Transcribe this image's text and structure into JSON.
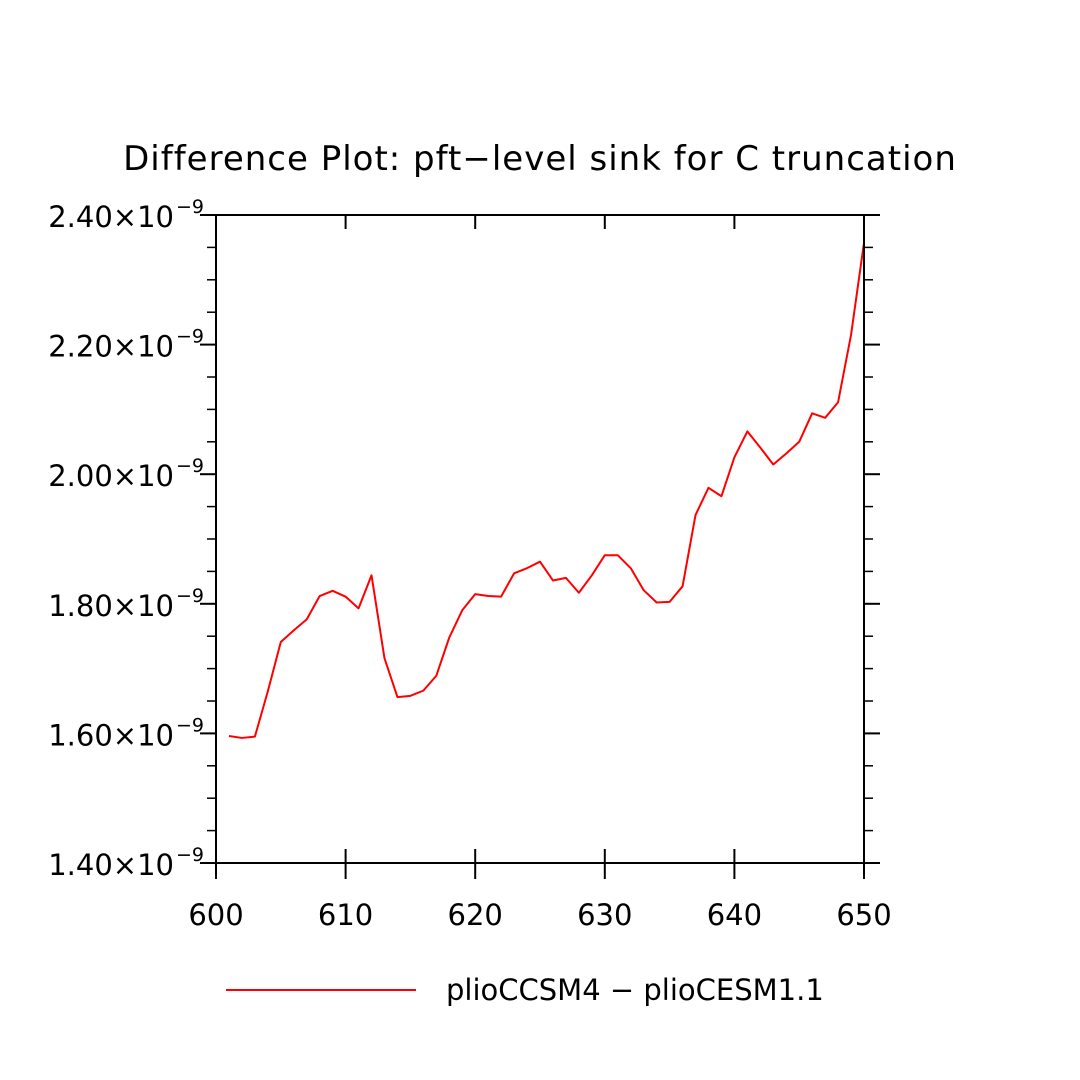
{
  "chart_data": {
    "type": "line",
    "title": "Difference Plot: pft−level sink for C truncation",
    "xlabel": "",
    "ylabel": "",
    "xlim": [
      600,
      650
    ],
    "ylim": [
      1.4e-09,
      2.4e-09
    ],
    "x_ticks": [
      600,
      610,
      620,
      630,
      640,
      650
    ],
    "x_tick_labels": [
      "600",
      "610",
      "620",
      "630",
      "640",
      "650"
    ],
    "y_ticks": [
      1.4e-09,
      1.6e-09,
      1.8e-09,
      2e-09,
      2.2e-09,
      2.4e-09
    ],
    "y_tick_mantissas": [
      "1.40",
      "1.60",
      "1.80",
      "2.00",
      "2.20",
      "2.40"
    ],
    "y_tick_multiplier": "×10",
    "y_tick_exponent": "−9",
    "grid": false,
    "legend_position": "bottom",
    "series": [
      {
        "name": "plioCCSM4 − plioCESM1.1",
        "color": "#ff0000",
        "x": [
          601,
          602,
          603,
          604,
          605,
          606,
          607,
          608,
          609,
          610,
          611,
          612,
          613,
          614,
          615,
          616,
          617,
          618,
          619,
          620,
          621,
          622,
          623,
          624,
          625,
          626,
          627,
          628,
          629,
          630,
          631,
          632,
          633,
          634,
          635,
          636,
          637,
          638,
          639,
          640,
          641,
          642,
          643,
          644,
          645,
          646,
          647,
          648,
          649,
          650
        ],
        "y": [
          1.596e-09,
          1.593e-09,
          1.595e-09,
          1.665e-09,
          1.741e-09,
          1.759e-09,
          1.776e-09,
          1.812e-09,
          1.82e-09,
          1.811e-09,
          1.793e-09,
          1.844e-09,
          1.716e-09,
          1.656e-09,
          1.658e-09,
          1.666e-09,
          1.689e-09,
          1.748e-09,
          1.79e-09,
          1.815e-09,
          1.812e-09,
          1.811e-09,
          1.847e-09,
          1.855e-09,
          1.865e-09,
          1.836e-09,
          1.84e-09,
          1.817e-09,
          1.844e-09,
          1.875e-09,
          1.875e-09,
          1.855e-09,
          1.821e-09,
          1.802e-09,
          1.803e-09,
          1.827e-09,
          1.937e-09,
          1.979e-09,
          1.966e-09,
          2.026e-09,
          2.066e-09,
          2.041e-09,
          2.015e-09,
          2.032e-09,
          2.05e-09,
          2.094e-09,
          2.087e-09,
          2.111e-09,
          2.215e-09,
          2.357e-09
        ]
      }
    ]
  }
}
